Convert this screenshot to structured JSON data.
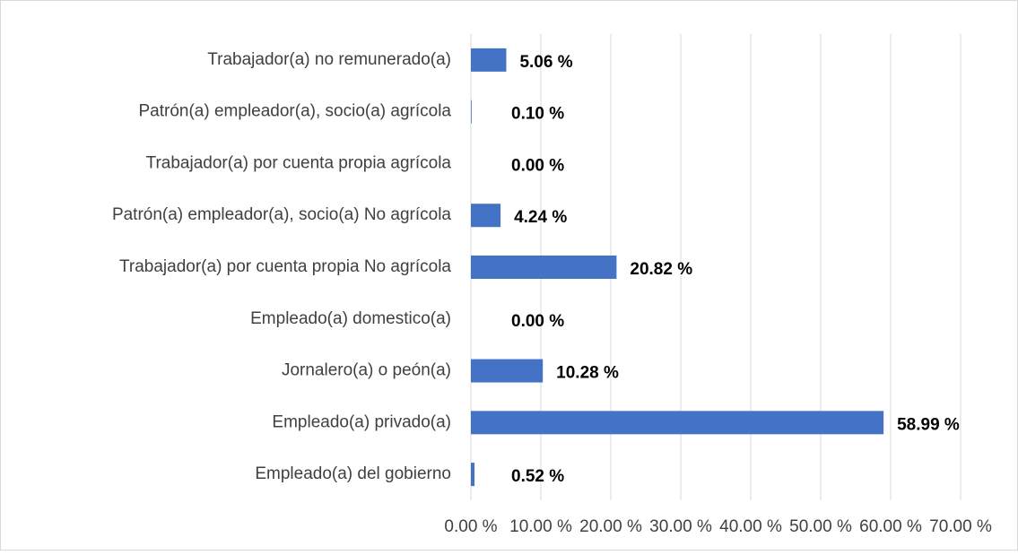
{
  "chart_data": {
    "type": "bar",
    "orientation": "horizontal",
    "categories": [
      "Trabajador(a) no remunerado(a)",
      "Patrón(a) empleador(a), socio(a) agrícola",
      "Trabajador(a) por cuenta propia agrícola",
      "Patrón(a) empleador(a), socio(a) No agrícola",
      "Trabajador(a) por cuenta propia No agrícola",
      "Empleado(a) domestico(a)",
      "Jornalero(a) o peón(a)",
      "Empleado(a) privado(a)",
      "Empleado(a) del gobierno"
    ],
    "values": [
      5.06,
      0.1,
      0.0,
      4.24,
      20.82,
      0.0,
      10.28,
      58.99,
      0.52
    ],
    "value_labels": [
      "5.06 %",
      "0.10 %",
      "0.00 %",
      "4.24 %",
      "20.82 %",
      "0.00 %",
      "10.28 %",
      "58.99 %",
      "0.52 %"
    ],
    "color": "#4472c4",
    "xlim": [
      0,
      70
    ],
    "xticks": [
      {
        "value": 0,
        "label": "0.00 %"
      },
      {
        "value": 10,
        "label": "10.00 %"
      },
      {
        "value": 20,
        "label": "20.00 %"
      },
      {
        "value": 30,
        "label": "30.00 %"
      },
      {
        "value": 40,
        "label": "40.00 %"
      },
      {
        "value": 50,
        "label": "50.00 %"
      },
      {
        "value": 60,
        "label": "60.00 %"
      },
      {
        "value": 70,
        "label": "70.00 %"
      }
    ],
    "grid": true
  }
}
